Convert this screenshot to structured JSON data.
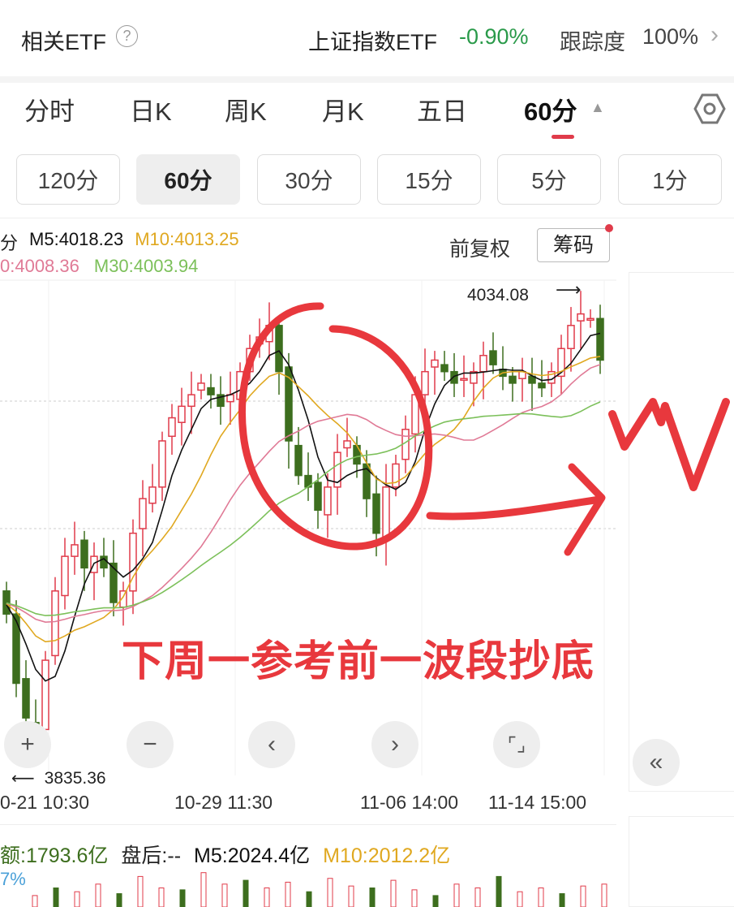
{
  "header": {
    "left_title": "相关ETF",
    "info_icon": "info-icon",
    "etf_name": "上证指数ETF",
    "etf_change": "-0.90%",
    "tracking_label": "跟踪度",
    "tracking_value": "100%"
  },
  "tabs": [
    {
      "label": "分时"
    },
    {
      "label": "日K"
    },
    {
      "label": "周K"
    },
    {
      "label": "月K"
    },
    {
      "label": "五日"
    },
    {
      "label": "60分",
      "active": true
    }
  ],
  "periods": [
    {
      "label": "120分"
    },
    {
      "label": "60分",
      "active": true
    },
    {
      "label": "30分"
    },
    {
      "label": "15分"
    },
    {
      "label": "5分"
    },
    {
      "label": "1分"
    }
  ],
  "indicators": {
    "prefix": "分",
    "m5": "M5:4018.23",
    "m10": "M10:4013.25",
    "m20": "0:4008.36",
    "m30": "M30:4003.94",
    "adjust": "前复权",
    "chips": "筹码"
  },
  "colors": {
    "up": "#e03b4a",
    "down": "#3d6e1e",
    "m5": "#111111",
    "m10": "#e0a820",
    "m20": "#e07a96",
    "m30": "#7cc05a",
    "annotation": "#e8383d"
  },
  "price_labels": {
    "high": "4034.08",
    "low": "3835.36"
  },
  "time_labels": [
    "0-21 10:30",
    "10-29 11:30",
    "11-06 14:00",
    "11-14 15:00"
  ],
  "annotation_text": "下周一参考前一波段抄底",
  "closes": [
    3900,
    3870,
    3855,
    3850,
    3880,
    3910,
    3925,
    3930,
    3920,
    3925,
    3920,
    3905,
    3910,
    3935,
    3950,
    3955,
    3975,
    3985,
    3990,
    3995,
    4000,
    3995,
    3990,
    3995,
    4005,
    4015,
    4020,
    4025,
    4005,
    3975,
    3960,
    3955,
    3945,
    3955,
    3970,
    3975,
    3965,
    3950,
    3935,
    3955,
    3965,
    3980,
    3995,
    4005,
    4010,
    4005,
    4000,
    4002,
    4005,
    4012,
    4008,
    4003,
    4000,
    4005,
    4000,
    3998,
    4005,
    4015,
    4025,
    4030,
    4028,
    4010
  ],
  "volume": {
    "amount": "额:1793.6亿",
    "after": "盘后:--",
    "m5": "M5:2024.4亿",
    "m10": "M10:2012.2亿",
    "pct": "7%",
    "bars": [
      0.3,
      0.5,
      0.4,
      0.6,
      0.35,
      0.8,
      0.5,
      0.45,
      0.9,
      0.6,
      0.7,
      0.5,
      0.65,
      0.4,
      0.75,
      0.55,
      0.5,
      0.7,
      0.45,
      0.3,
      0.6,
      0.5,
      0.8,
      0.4,
      0.5,
      0.35,
      0.55,
      0.6
    ]
  }
}
